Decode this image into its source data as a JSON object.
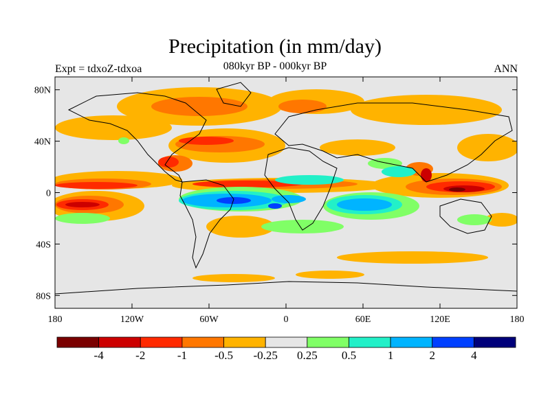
{
  "figure": {
    "title": "Precipitation (in mm/day)",
    "subtitle": "080kyr BP - 000kyr BP",
    "left_label": "Expt = tdxoZ-tdxoa",
    "right_label": "ANN"
  },
  "map": {
    "lon_range": [
      -180,
      180
    ],
    "lat_range": [
      -90,
      90
    ],
    "x_ticks": [
      {
        "value": -180,
        "label": "180"
      },
      {
        "value": -120,
        "label": "120W"
      },
      {
        "value": -60,
        "label": "60W"
      },
      {
        "value": 0,
        "label": "0"
      },
      {
        "value": 60,
        "label": "60E"
      },
      {
        "value": 120,
        "label": "120E"
      },
      {
        "value": 180,
        "label": "180"
      }
    ],
    "y_ticks": [
      {
        "value": 80,
        "label": "80N"
      },
      {
        "value": 40,
        "label": "40N"
      },
      {
        "value": 0,
        "label": "0"
      },
      {
        "value": -40,
        "label": "40S"
      },
      {
        "value": -80,
        "label": "80S"
      }
    ],
    "background_color": "#e6e6e6"
  },
  "colorbar": {
    "colors": [
      "#7a0000",
      "#cc0000",
      "#ff2a00",
      "#ff7700",
      "#ffb300",
      "#e6e6e6",
      "#80ff66",
      "#22f0c8",
      "#00b4ff",
      "#0040ff",
      "#00007a"
    ],
    "labels": [
      "-4",
      "-2",
      "-1",
      "-0.5",
      "-0.25",
      "0.25",
      "0.5",
      "1",
      "2",
      "4"
    ]
  }
}
